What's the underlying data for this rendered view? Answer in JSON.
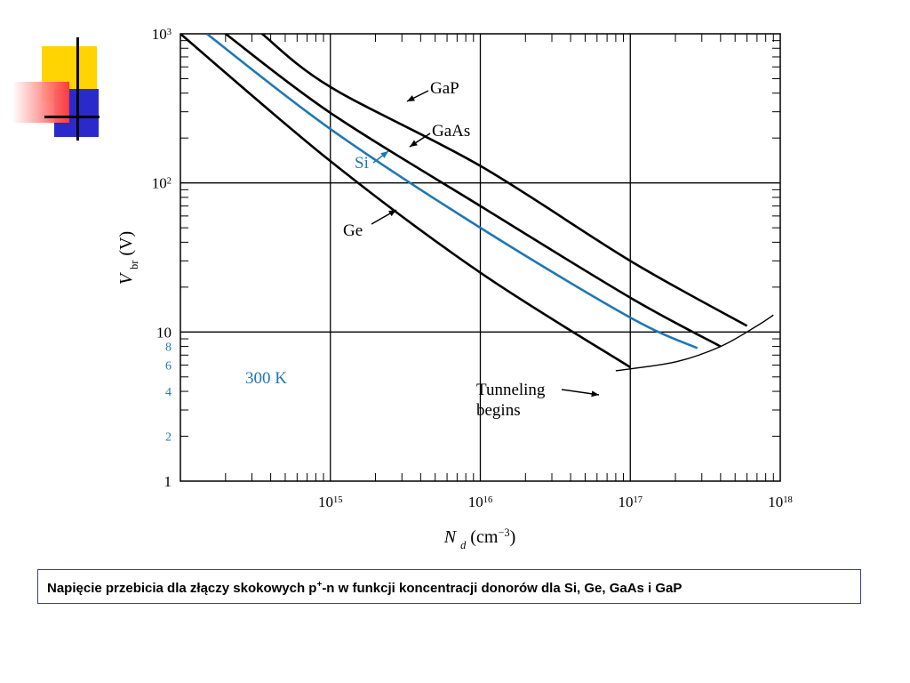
{
  "slide": {
    "caption": {
      "before_sup": "Napięcie przebicia dla złączy skokowych p",
      "sup": "+",
      "after_sup": "-n w  funkcji koncentracji donorów dla Si, Ge, GaAs i GaP"
    }
  },
  "colors": {
    "decor_yellow": "#ffd400",
    "decor_blue": "#2a2acc",
    "decor_red": "#ff3b3b",
    "caption_border": "#3b3ba0",
    "si_blue": "#1f77b4",
    "curve_black": "#000000",
    "grid": "#000000"
  },
  "chart_data": {
    "type": "line",
    "title": "",
    "xlabel": "N d (cm−3)",
    "ylabel": "V br (V)",
    "x_scale": "log",
    "y_scale": "log",
    "xlim": [
      100000000000000.0,
      1e+18
    ],
    "ylim": [
      1,
      1000
    ],
    "grid": true,
    "x_ticks": [
      {
        "value": 1000000000000000.0,
        "label_base": "10",
        "label_exp": "15"
      },
      {
        "value": 1e+16,
        "label_base": "10",
        "label_exp": "16"
      },
      {
        "value": 1e+17,
        "label_base": "10",
        "label_exp": "17"
      },
      {
        "value": 1e+18,
        "label_base": "10",
        "label_exp": "18"
      }
    ],
    "y_ticks_major": [
      {
        "value": 1,
        "label": "1"
      },
      {
        "value": 10,
        "label": "10"
      },
      {
        "value": 100,
        "label_base": "10",
        "label_exp": "2"
      },
      {
        "value": 1000,
        "label_base": "10",
        "label_exp": "3"
      }
    ],
    "y_ticks_minor_labeled": [
      {
        "value": 2,
        "label": "2"
      },
      {
        "value": 4,
        "label": "4"
      },
      {
        "value": 6,
        "label": "6"
      },
      {
        "value": 8,
        "label": "8"
      }
    ],
    "series": [
      {
        "name": "GaP",
        "x": [
          350000000000000.0,
          1000000000000000.0,
          1e+16,
          1e+17,
          6e+17
        ],
        "y": [
          1000,
          440,
          130,
          30,
          11
        ]
      },
      {
        "name": "GaAs",
        "x": [
          200000000000000.0,
          1000000000000000.0,
          1e+16,
          1e+17,
          4e+17
        ],
        "y": [
          1000,
          295,
          70,
          17,
          8
        ]
      },
      {
        "name": "Si",
        "x": [
          150000000000000.0,
          1000000000000000.0,
          1e+16,
          1e+17,
          2.8e+17
        ],
        "y": [
          1000,
          230,
          50,
          12.5,
          7.8
        ]
      },
      {
        "name": "Ge",
        "x": [
          100000000000000.0,
          1000000000000000.0,
          1e+16,
          1e+17
        ],
        "y": [
          1000,
          140,
          25,
          5.8
        ]
      },
      {
        "name": "Tunneling begins",
        "x": [
          8e+16,
          2e+17,
          4e+17,
          7e+17,
          9e+17
        ],
        "y": [
          5.5,
          6.3,
          8,
          11,
          13
        ]
      }
    ],
    "annotations": {
      "gap": "GaP",
      "gaas": "GaAs",
      "si": "Si",
      "ge": "Ge",
      "temp": "300 K",
      "tunneling_line1": "Tunneling",
      "tunneling_line2": "begins"
    },
    "axis_labels": {
      "x_var": "N",
      "x_sub": "d",
      "x_unit_open": "(cm",
      "x_unit_exp": "−3",
      "x_unit_close": ")",
      "y_var": "V",
      "y_sub": "br",
      "y_unit": "(V)"
    }
  }
}
